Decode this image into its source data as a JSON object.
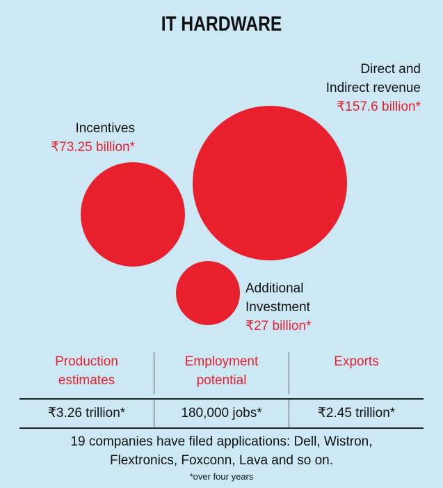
{
  "title": "IT HARDWARE",
  "colors": {
    "accent": "#e8202e",
    "background": "#cde8f5"
  },
  "bubbles": [
    {
      "label": "Incentives",
      "value": "₹73.25 billion*",
      "amount_billion": 73.25
    },
    {
      "label_line1": "Direct and",
      "label_line2": "Indirect revenue",
      "value": "₹157.6 billion*",
      "amount_billion": 157.6
    },
    {
      "label_line1": "Additional",
      "label_line2": "Investment",
      "value": "₹27 billion*",
      "amount_billion": 27
    }
  ],
  "table": {
    "headers": [
      {
        "line1": "Production",
        "line2": "estimates"
      },
      {
        "line1": "Employment",
        "line2": "potential"
      },
      {
        "line1": "Exports",
        "line2": ""
      }
    ],
    "values": [
      "₹3.26 trillion*",
      "180,000 jobs*",
      "₹2.45 trillion*"
    ]
  },
  "note_line1": "19 companies have filed applications: Dell, Wistron,",
  "note_line2": "Flextronics, Foxconn, Lava and so on.",
  "footnote": "*over four years"
}
